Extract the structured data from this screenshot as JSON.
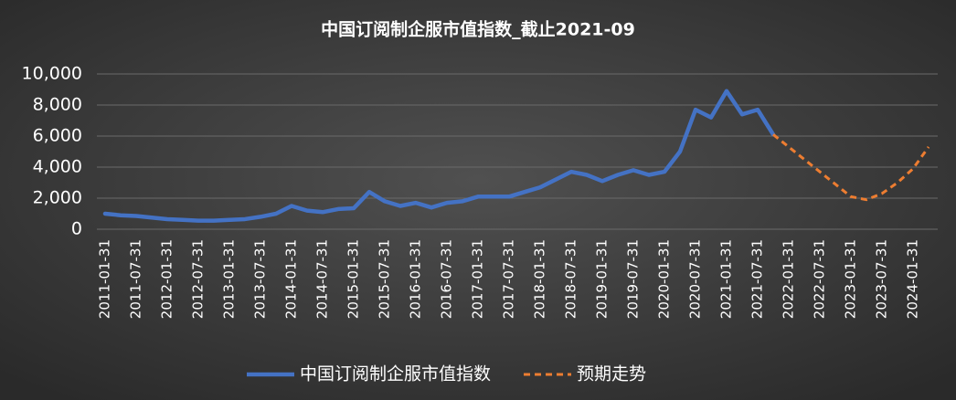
{
  "chart_data": {
    "type": "line",
    "title": "中国订阅制企服市值指数_截止2021-09",
    "categories": [
      "2011-01-31",
      null,
      "2011-07-31",
      null,
      "2012-01-31",
      null,
      "2012-07-31",
      null,
      "2013-01-31",
      null,
      "2013-07-31",
      null,
      "2014-01-31",
      null,
      "2014-07-31",
      null,
      "2015-01-31",
      null,
      "2015-07-31",
      null,
      "2016-01-31",
      null,
      "2016-07-31",
      null,
      "2017-01-31",
      null,
      "2017-07-31",
      null,
      "2018-01-31",
      null,
      "2018-07-31",
      null,
      "2019-01-31",
      null,
      "2019-07-31",
      null,
      "2020-01-31",
      null,
      "2020-07-31",
      null,
      "2021-01-31",
      null,
      "2021-07-31",
      null,
      "2022-01-31",
      null,
      "2022-07-31",
      null,
      "2023-01-31",
      null,
      "2023-07-31",
      null,
      "2024-01-31",
      null
    ],
    "series": [
      {
        "name": "中国订阅制企服市值指数",
        "color": "#4472c4",
        "dashed": false,
        "values": [
          1000,
          900,
          850,
          750,
          650,
          600,
          550,
          550,
          600,
          650,
          800,
          1000,
          1500,
          1200,
          1100,
          1300,
          1350,
          2400,
          1800,
          1500,
          1700,
          1400,
          1700,
          1800,
          2100,
          2100,
          2100,
          2400,
          2700,
          3200,
          3700,
          3500,
          3100,
          3500,
          3800,
          3500,
          3700,
          5000,
          7700,
          7200,
          8900,
          7400,
          7700,
          6100,
          null,
          null,
          null,
          null,
          null,
          null,
          null,
          null,
          null,
          null
        ]
      },
      {
        "name": "预期走势",
        "color": "#ed7d31",
        "dashed": true,
        "values": [
          null,
          null,
          null,
          null,
          null,
          null,
          null,
          null,
          null,
          null,
          null,
          null,
          null,
          null,
          null,
          null,
          null,
          null,
          null,
          null,
          null,
          null,
          null,
          null,
          null,
          null,
          null,
          null,
          null,
          null,
          null,
          null,
          null,
          null,
          null,
          null,
          null,
          null,
          null,
          null,
          null,
          null,
          null,
          6100,
          5300,
          4500,
          3700,
          2900,
          2100,
          1900,
          2300,
          3000,
          3900,
          5300
        ]
      }
    ],
    "ylim": [
      0,
      10000
    ],
    "yticks": [
      0,
      {
        "value": 2000,
        "label": "2,000"
      },
      {
        "value": 4000,
        "label": "4,000"
      },
      {
        "value": 6000,
        "label": "6,000"
      },
      {
        "value": 8000,
        "label": "8,000"
      },
      {
        "value": 10000,
        "label": "10,000"
      }
    ],
    "grid": true
  }
}
